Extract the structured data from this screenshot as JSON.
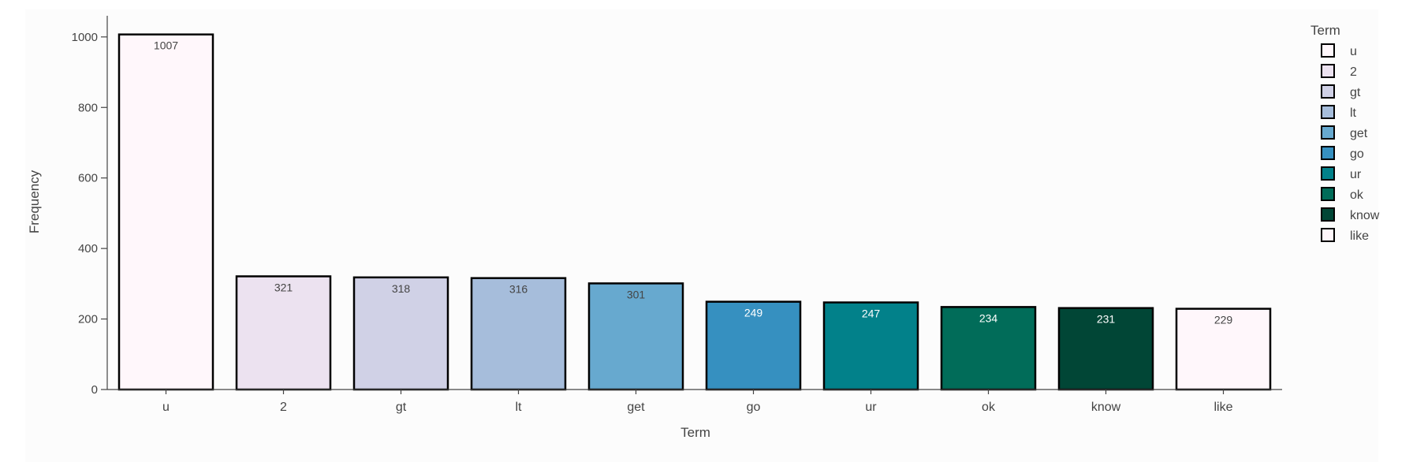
{
  "chart_data": {
    "type": "bar",
    "xlabel": "Term",
    "ylabel": "Frequency",
    "categories": [
      "u",
      "2",
      "gt",
      "lt",
      "get",
      "go",
      "ur",
      "ok",
      "know",
      "like"
    ],
    "values": [
      1007,
      321,
      318,
      316,
      301,
      249,
      247,
      234,
      231,
      229
    ],
    "data_labels": [
      "1007",
      "321",
      "318",
      "316",
      "301",
      "249",
      "247",
      "234",
      "231",
      "229"
    ],
    "ylim": [
      0,
      1060
    ],
    "yticks": [
      0,
      200,
      400,
      600,
      800,
      1000
    ],
    "ytick_labels": [
      "0",
      "200",
      "400",
      "600",
      "800",
      "1000"
    ],
    "grid": false,
    "legend": {
      "title": "Term",
      "placement": "top-right",
      "entries": [
        "u",
        "2",
        "gt",
        "lt",
        "get",
        "go",
        "ur",
        "ok",
        "know",
        "like"
      ]
    },
    "colors": [
      "#fff7fb",
      "#ece2f0",
      "#d0d1e6",
      "#a6bddb",
      "#67a9cf",
      "#3690c0",
      "#02818a",
      "#016c59",
      "#014636",
      "#fff7fb"
    ],
    "label_colors": [
      "#444444",
      "#444444",
      "#444444",
      "#444444",
      "#444444",
      "#ffffff",
      "#ffffff",
      "#ffffff",
      "#ffffff",
      "#444444"
    ]
  }
}
